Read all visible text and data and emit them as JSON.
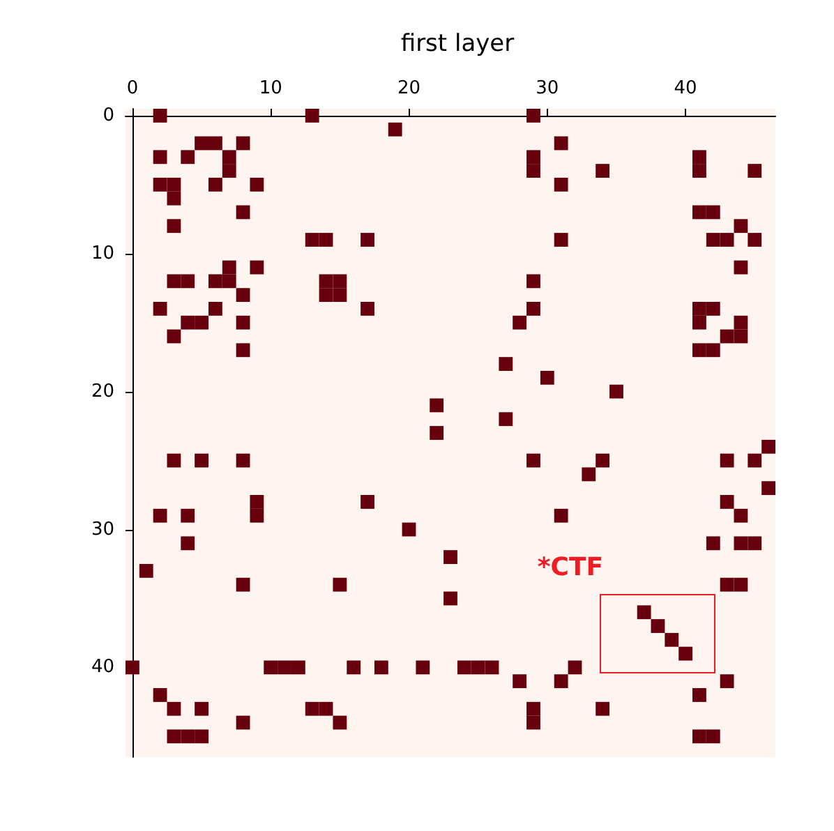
{
  "chart_data": {
    "type": "scatter",
    "title": "first layer",
    "x": [
      2,
      13,
      29,
      19,
      5,
      6,
      8,
      31,
      2,
      4,
      7,
      29,
      41,
      7,
      29,
      34,
      41,
      45,
      2,
      3,
      6,
      9,
      31,
      3,
      8,
      41,
      42,
      3,
      44,
      13,
      14,
      17,
      31,
      42,
      43,
      45,
      7,
      9,
      44,
      3,
      4,
      6,
      7,
      14,
      15,
      29,
      8,
      14,
      15,
      2,
      6,
      17,
      29,
      41,
      42,
      4,
      5,
      8,
      28,
      41,
      44,
      3,
      43,
      44,
      8,
      41,
      42,
      27,
      30,
      35,
      22,
      27,
      22,
      46,
      3,
      5,
      8,
      29,
      34,
      43,
      45,
      33,
      46,
      9,
      17,
      43,
      2,
      4,
      9,
      31,
      44,
      20,
      4,
      42,
      44,
      45,
      23,
      1,
      8,
      15,
      43,
      44,
      23,
      37,
      38,
      39,
      40,
      0,
      10,
      11,
      12,
      16,
      18,
      21,
      24,
      25,
      26,
      32,
      28,
      31,
      43,
      2,
      41,
      3,
      5,
      13,
      14,
      29,
      34,
      8,
      15,
      29,
      3,
      4,
      5,
      41,
      42
    ],
    "values": [
      0,
      0,
      0,
      1,
      2,
      2,
      2,
      2,
      3,
      3,
      3,
      3,
      3,
      4,
      4,
      4,
      4,
      4,
      5,
      5,
      5,
      5,
      5,
      6,
      7,
      7,
      7,
      8,
      8,
      9,
      9,
      9,
      9,
      9,
      9,
      9,
      11,
      11,
      11,
      12,
      12,
      12,
      12,
      12,
      12,
      12,
      13,
      13,
      13,
      14,
      14,
      14,
      14,
      14,
      14,
      15,
      15,
      15,
      15,
      15,
      15,
      16,
      16,
      16,
      17,
      17,
      17,
      18,
      19,
      20,
      21,
      22,
      23,
      24,
      25,
      25,
      25,
      25,
      25,
      25,
      25,
      26,
      27,
      28,
      28,
      28,
      29,
      29,
      29,
      29,
      29,
      30,
      31,
      31,
      31,
      31,
      32,
      33,
      34,
      34,
      34,
      34,
      35,
      36,
      37,
      38,
      39,
      40,
      40,
      40,
      40,
      40,
      40,
      40,
      40,
      40,
      40,
      40,
      41,
      41,
      41,
      42,
      42,
      43,
      43,
      43,
      43,
      43,
      43,
      44,
      44,
      44,
      45,
      45,
      45,
      45,
      45
    ],
    "color": "#67000d",
    "marker": "square",
    "xlim": [
      -0.5,
      46.5
    ],
    "ylim": [
      46.5,
      -0.5
    ],
    "xticks": [
      0,
      10,
      20,
      30,
      40
    ],
    "yticks": [
      0,
      10,
      20,
      30,
      40
    ],
    "annotations": [
      "*CTF"
    ]
  }
}
